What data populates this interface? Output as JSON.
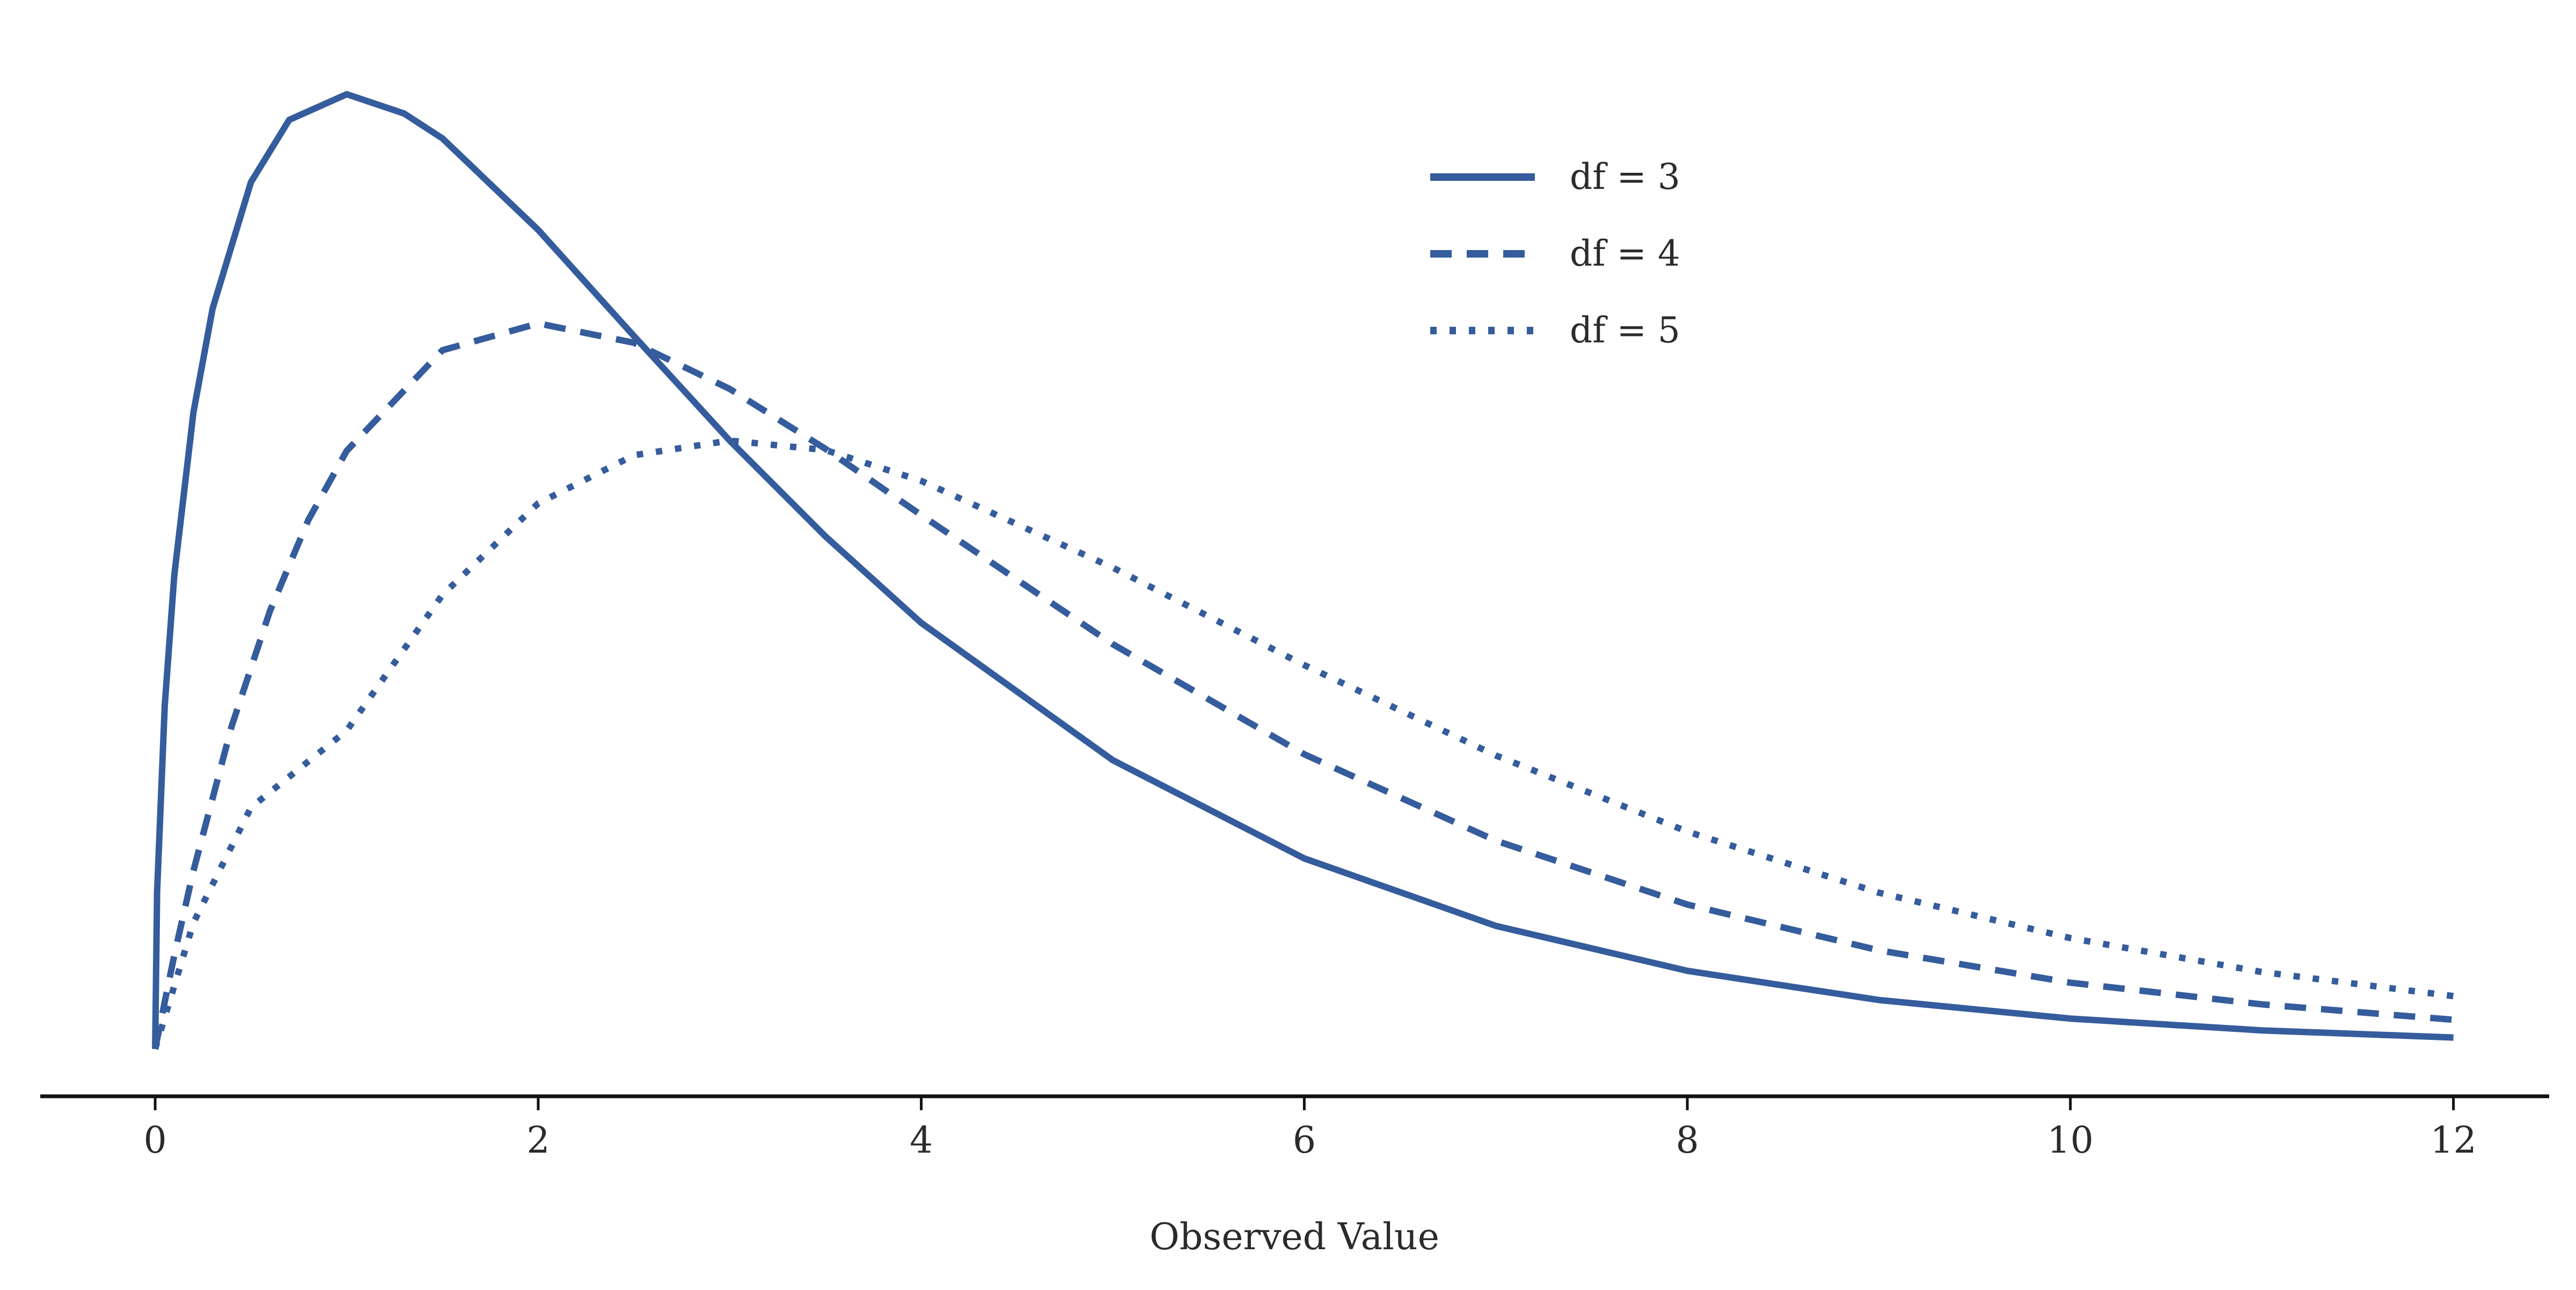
{
  "chart_data": {
    "type": "line",
    "title": "",
    "xlabel": "Observed Value",
    "ylabel": "",
    "xlim": [
      -0.6,
      12.5
    ],
    "ylim": [
      -0.012,
      0.255
    ],
    "x_ticks": [
      0,
      2,
      4,
      6,
      8,
      10,
      12
    ],
    "x_tick_labels": [
      "0",
      "2",
      "4",
      "6",
      "8",
      "10",
      "12"
    ],
    "grid": false,
    "legend_position": "top-center",
    "line_color": "#355c9c",
    "series": [
      {
        "name": "df = 3",
        "line_style": "solid",
        "x": [
          0,
          0.01,
          0.05,
          0.1,
          0.2,
          0.3,
          0.5,
          0.7,
          1,
          1.3,
          1.5,
          2,
          2.5,
          3,
          3.5,
          4,
          5,
          6,
          7,
          8,
          9,
          10,
          11,
          12
        ],
        "y": [
          0,
          0.0397,
          0.0871,
          0.1201,
          0.1614,
          0.1877,
          0.2197,
          0.2355,
          0.242,
          0.2371,
          0.2308,
          0.2076,
          0.1807,
          0.1542,
          0.1299,
          0.108,
          0.0732,
          0.0483,
          0.0312,
          0.0198,
          0.0124,
          0.0077,
          0.0047,
          0.0029
        ]
      },
      {
        "name": "df = 4",
        "line_style": "dashed",
        "x": [
          0,
          0.1,
          0.2,
          0.4,
          0.6,
          0.8,
          1,
          1.5,
          2,
          2.5,
          3,
          3.5,
          4,
          5,
          6,
          7,
          8,
          9,
          10,
          11,
          12
        ],
        "y": [
          0,
          0.0238,
          0.0452,
          0.0819,
          0.1111,
          0.1341,
          0.1516,
          0.1771,
          0.1839,
          0.179,
          0.1673,
          0.1521,
          0.1353,
          0.1026,
          0.0747,
          0.0528,
          0.0366,
          0.025,
          0.0168,
          0.0113,
          0.0074
        ]
      },
      {
        "name": "df = 5",
        "line_style": "dotted",
        "x": [
          0,
          0.2,
          0.5,
          1,
          1.5,
          2,
          2.5,
          3,
          3.5,
          4,
          5,
          6,
          7,
          8,
          9,
          10,
          11,
          12
        ],
        "y": [
          0,
          0.032,
          0.0612,
          0.0807,
          0.1151,
          0.1383,
          0.1505,
          0.1542,
          0.1518,
          0.144,
          0.122,
          0.0973,
          0.0744,
          0.0551,
          0.0396,
          0.0281,
          0.0195,
          0.0134
        ]
      }
    ]
  }
}
